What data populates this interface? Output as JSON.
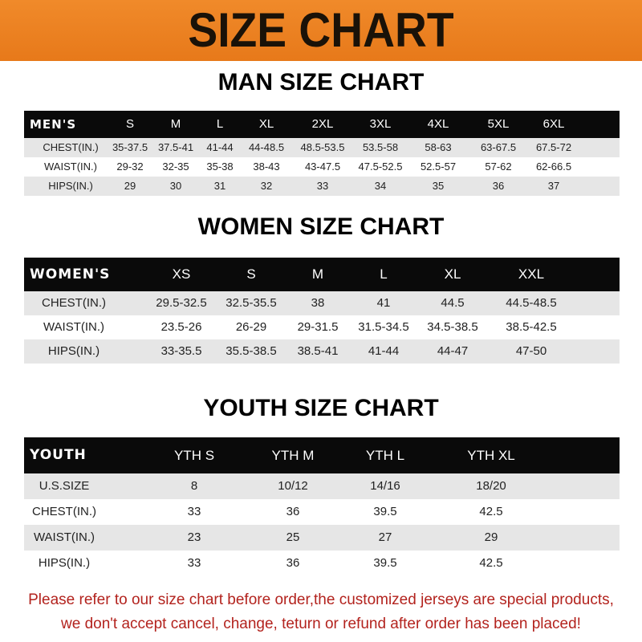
{
  "banner_title": "SIZE CHART",
  "men": {
    "title": "MAN SIZE CHART",
    "header": [
      "MEN'S",
      "S",
      "M",
      "L",
      "XL",
      "2XL",
      "3XL",
      "4XL",
      "5XL",
      "6XL"
    ],
    "rows": [
      [
        "CHEST(IN.)",
        "35-37.5",
        "37.5-41",
        "41-44",
        "44-48.5",
        "48.5-53.5",
        "53.5-58",
        "58-63",
        "63-67.5",
        "67.5-72"
      ],
      [
        "WAIST(IN.)",
        "29-32",
        "32-35",
        "35-38",
        "38-43",
        "43-47.5",
        "47.5-52.5",
        "52.5-57",
        "57-62",
        "62-66.5"
      ],
      [
        "HIPS(IN.)",
        "29",
        "30",
        "31",
        "32",
        "33",
        "34",
        "35",
        "36",
        "37"
      ]
    ]
  },
  "women": {
    "title": "WOMEN SIZE CHART",
    "header": [
      "WOMEN'S",
      "XS",
      "S",
      "M",
      "L",
      "XL",
      "XXL"
    ],
    "rows": [
      [
        "CHEST(IN.)",
        "29.5-32.5",
        "32.5-35.5",
        "38",
        "41",
        "44.5",
        "44.5-48.5"
      ],
      [
        "WAIST(IN.)",
        "23.5-26",
        "26-29",
        "29-31.5",
        "31.5-34.5",
        "34.5-38.5",
        "38.5-42.5"
      ],
      [
        "HIPS(IN.)",
        "33-35.5",
        "35.5-38.5",
        "38.5-41",
        "41-44",
        "44-47",
        "47-50"
      ]
    ]
  },
  "youth": {
    "title": "YOUTH SIZE CHART",
    "header": [
      "YOUTH",
      "YTH S",
      "YTH M",
      "YTH L",
      "YTH XL"
    ],
    "rows": [
      [
        "U.S.SIZE",
        "8",
        "10/12",
        "14/16",
        "18/20"
      ],
      [
        "CHEST(IN.)",
        "33",
        "36",
        "39.5",
        "42.5"
      ],
      [
        "WAIST(IN.)",
        "23",
        "25",
        "27",
        "29"
      ],
      [
        "HIPS(IN.)",
        "33",
        "36",
        "39.5",
        "42.5"
      ]
    ]
  },
  "footer": {
    "line1": "Please refer to our size chart before order,the customized jerseys are special products,",
    "line2": "we don't accept cancel, change, teturn or refund after order has been placed!"
  }
}
